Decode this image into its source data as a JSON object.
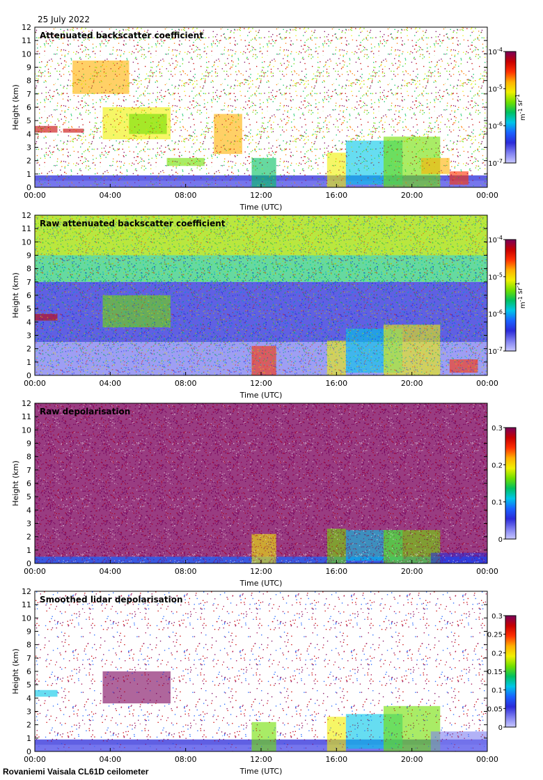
{
  "header": {
    "date": "25 July 2022"
  },
  "footer": {
    "site": "Rovaniemi Vaisala CL61D ceilometer"
  },
  "colormap": [
    "#c8c8ff",
    "#7e7ef0",
    "#2b2bd9",
    "#1a62ff",
    "#00c6e8",
    "#00c060",
    "#70e000",
    "#f0f000",
    "#ffb000",
    "#ff3000",
    "#c80000",
    "#7a005a"
  ],
  "chart_data": [
    {
      "type": "heatmap",
      "title": "Attenuated backscatter coefficient",
      "xlabel": "Time (UTC)",
      "ylabel": "Height (km)",
      "x_ticks": [
        "00:00",
        "04:00",
        "08:00",
        "12:00",
        "16:00",
        "20:00",
        "00:00"
      ],
      "y_ticks": [
        "0",
        "1",
        "2",
        "3",
        "4",
        "5",
        "6",
        "7",
        "8",
        "9",
        "10",
        "11",
        "12"
      ],
      "ylim": [
        0,
        12
      ],
      "colorbar": {
        "scale": "log",
        "ticks": [
          "10^-4",
          "10^-5",
          "10^-6",
          "10^-7"
        ],
        "unit_label": "m^-1 sr^-1"
      },
      "noise_level": 0.35
    },
    {
      "type": "heatmap",
      "title": "Raw attenuated backscatter coefficient",
      "xlabel": "Time (UTC)",
      "ylabel": "Height (km)",
      "x_ticks": [
        "00:00",
        "04:00",
        "08:00",
        "12:00",
        "16:00",
        "20:00",
        "00:00"
      ],
      "y_ticks": [
        "0",
        "1",
        "2",
        "3",
        "4",
        "5",
        "6",
        "7",
        "8",
        "9",
        "10",
        "11",
        "12"
      ],
      "ylim": [
        0,
        12
      ],
      "colorbar": {
        "scale": "log",
        "ticks": [
          "10^-4",
          "10^-5",
          "10^-6",
          "10^-7"
        ],
        "unit_label": "m^-1 sr^-1"
      },
      "noise_level": 1.0
    },
    {
      "type": "heatmap",
      "title": "Raw depolarisation",
      "xlabel": "Time (UTC)",
      "ylabel": "Height (km)",
      "x_ticks": [
        "00:00",
        "04:00",
        "08:00",
        "12:00",
        "16:00",
        "20:00",
        "00:00"
      ],
      "y_ticks": [
        "0",
        "1",
        "2",
        "3",
        "4",
        "5",
        "6",
        "7",
        "8",
        "9",
        "10",
        "11",
        "12"
      ],
      "ylim": [
        0,
        12
      ],
      "colorbar": {
        "scale": "linear",
        "ticks": [
          "0.3",
          "0.2",
          "0.1",
          "0"
        ],
        "unit_label": ""
      },
      "noise_level": 0.9
    },
    {
      "type": "heatmap",
      "title": "Smoothed lidar depolarisation",
      "xlabel": "Time (UTC)",
      "ylabel": "Height (km)",
      "x_ticks": [
        "00:00",
        "04:00",
        "08:00",
        "12:00",
        "16:00",
        "20:00",
        "00:00"
      ],
      "y_ticks": [
        "0",
        "1",
        "2",
        "3",
        "4",
        "5",
        "6",
        "7",
        "8",
        "9",
        "10",
        "11",
        "12"
      ],
      "ylim": [
        0,
        12
      ],
      "colorbar": {
        "scale": "linear",
        "ticks": [
          "0.3",
          "0.25",
          "0.2",
          "0.15",
          "0.1",
          "0.05",
          "0"
        ],
        "unit_label": ""
      },
      "noise_level": 0.15
    }
  ]
}
